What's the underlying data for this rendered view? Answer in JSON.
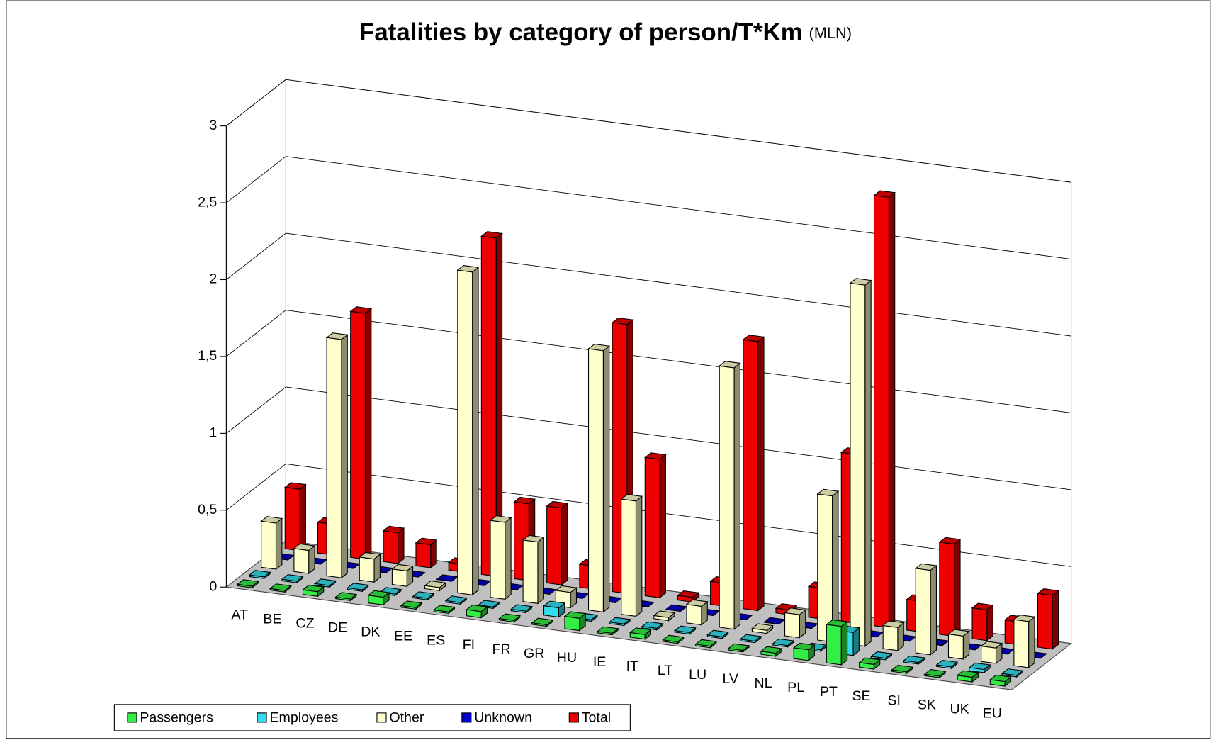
{
  "chart_data": {
    "type": "bar",
    "title": "Fatalities by category of person/T*Km",
    "unit_label": "(MLN)",
    "categories": [
      "AT",
      "BE",
      "CZ",
      "DE",
      "DK",
      "EE",
      "ES",
      "FI",
      "FR",
      "GR",
      "HU",
      "IE",
      "IT",
      "LT",
      "LU",
      "LV",
      "NL",
      "PL",
      "PT",
      "SE",
      "SI",
      "SK",
      "UK",
      "EU"
    ],
    "series": [
      {
        "name": "Passengers",
        "color": "#33ee44",
        "values": [
          0.01,
          0.01,
          0.03,
          0.01,
          0.05,
          0.01,
          0.01,
          0.04,
          0.01,
          0.01,
          0.08,
          0.01,
          0.03,
          0.01,
          0.01,
          0.01,
          0.02,
          0.07,
          0.25,
          0.03,
          0.01,
          0.01,
          0.03,
          0.03
        ]
      },
      {
        "name": "Employees",
        "color": "#33ddee",
        "values": [
          0.01,
          0.01,
          0.01,
          0.01,
          0.01,
          0.01,
          0.01,
          0.01,
          0.01,
          0.06,
          0.01,
          0.01,
          0.01,
          0.01,
          0.01,
          0.01,
          0.01,
          0.01,
          0.15,
          0.01,
          0.01,
          0.01,
          0.02,
          0.01
        ]
      },
      {
        "name": "Other",
        "color": "#ffffcc",
        "values": [
          0.3,
          0.15,
          1.55,
          0.15,
          0.1,
          0.02,
          2.1,
          0.5,
          0.4,
          0.1,
          1.7,
          0.75,
          0.02,
          0.12,
          1.7,
          0.02,
          0.15,
          0.95,
          2.35,
          0.15,
          0.55,
          0.15,
          0.1,
          0.3
        ]
      },
      {
        "name": "Unknown",
        "color": "#0000cc",
        "values": [
          0,
          0,
          0,
          0,
          0,
          0,
          0,
          0,
          0,
          0,
          0,
          0,
          0,
          0,
          0,
          0,
          0,
          0,
          0,
          0,
          0,
          0,
          0,
          0
        ]
      },
      {
        "name": "Total",
        "color": "#ee0000",
        "values": [
          0.4,
          0.2,
          1.6,
          0.2,
          0.15,
          0.05,
          2.2,
          0.5,
          0.5,
          0.15,
          1.75,
          0.9,
          0.03,
          0.15,
          1.75,
          0.03,
          0.2,
          1.1,
          2.8,
          0.2,
          0.6,
          0.2,
          0.15,
          0.35
        ]
      }
    ],
    "ylim": [
      0,
      3
    ],
    "yticks": [
      0,
      {
        "value": 0.5,
        "label": "0,5"
      },
      1,
      {
        "value": 1.5,
        "label": "1,5"
      },
      2,
      {
        "value": 2.5,
        "label": "2,5"
      },
      3
    ],
    "grid": true,
    "legend": "bottom-left"
  }
}
